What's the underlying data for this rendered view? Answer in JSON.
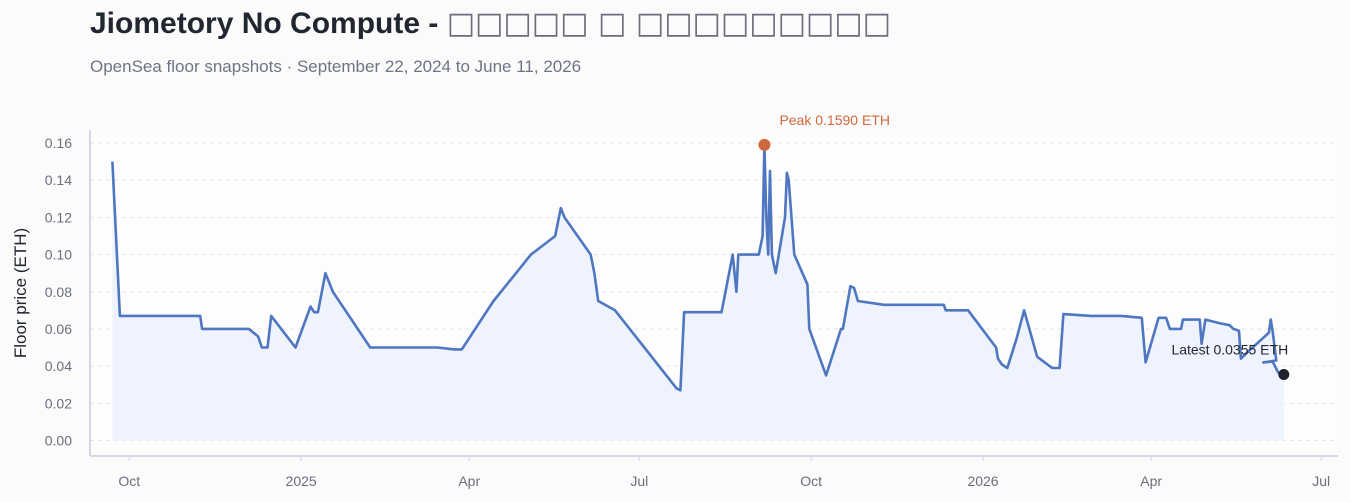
{
  "header": {
    "title": "Jiometory No Compute - ",
    "title_glyphs": "□□□□□ □ □□□□□□□□□",
    "subtitle": "OpenSea floor snapshots · September 22, 2024 to June 11, 2026"
  },
  "colors": {
    "line": "#4f76c0",
    "area": "#eef3fd",
    "peak": "#d0683e",
    "latest": "#1f222b",
    "grid": "#e2e4ea",
    "axis": "#d6d6e6"
  },
  "chart_data": {
    "type": "line",
    "xlabel": "",
    "ylabel": "Floor price (ETH)",
    "ylim": [
      0,
      0.165
    ],
    "xlim": [
      "2024-09-10",
      "2026-07-10"
    ],
    "yticks": [
      0.0,
      0.02,
      0.04,
      0.06,
      0.08,
      0.1,
      0.12,
      0.14,
      0.16
    ],
    "ytick_labels": [
      "0.00",
      "0.02",
      "0.04",
      "0.06",
      "0.08",
      "0.10",
      "0.12",
      "0.14",
      "0.16"
    ],
    "xticks": [
      {
        "date": "2024-10-01",
        "label": "Oct"
      },
      {
        "date": "2025-01-01",
        "label": "2025"
      },
      {
        "date": "2025-04-01",
        "label": "Apr"
      },
      {
        "date": "2025-07-01",
        "label": "Jul"
      },
      {
        "date": "2025-10-01",
        "label": "Oct"
      },
      {
        "date": "2026-01-01",
        "label": "2026"
      },
      {
        "date": "2026-04-01",
        "label": "Apr"
      },
      {
        "date": "2026-07-01",
        "label": "Jul"
      }
    ],
    "grid": true,
    "series": [
      {
        "points": [
          [
            "2024-09-22",
            0.15
          ],
          [
            "2024-09-26",
            0.067
          ],
          [
            "2024-11-08",
            0.067
          ],
          [
            "2024-11-09",
            0.06
          ],
          [
            "2024-12-04",
            0.06
          ],
          [
            "2024-12-09",
            0.056
          ],
          [
            "2024-12-11",
            0.05
          ],
          [
            "2024-12-14",
            0.05
          ],
          [
            "2024-12-16",
            0.067
          ],
          [
            "2024-12-29",
            0.05
          ],
          [
            "2025-01-06",
            0.072
          ],
          [
            "2025-01-08",
            0.069
          ],
          [
            "2025-01-10",
            0.069
          ],
          [
            "2025-01-14",
            0.09
          ],
          [
            "2025-01-18",
            0.08
          ],
          [
            "2025-02-07",
            0.05
          ],
          [
            "2025-03-15",
            0.05
          ],
          [
            "2025-03-24",
            0.049
          ],
          [
            "2025-03-28",
            0.049
          ],
          [
            "2025-04-14",
            0.075
          ],
          [
            "2025-05-04",
            0.1
          ],
          [
            "2025-05-17",
            0.11
          ],
          [
            "2025-05-20",
            0.125
          ],
          [
            "2025-05-22",
            0.12
          ],
          [
            "2025-06-05",
            0.1
          ],
          [
            "2025-06-07",
            0.09
          ],
          [
            "2025-06-09",
            0.075
          ],
          [
            "2025-06-18",
            0.07
          ],
          [
            "2025-07-21",
            0.028
          ],
          [
            "2025-07-23",
            0.027
          ],
          [
            "2025-07-25",
            0.069
          ],
          [
            "2025-07-29",
            0.069
          ],
          [
            "2025-08-14",
            0.069
          ],
          [
            "2025-08-20",
            0.1
          ],
          [
            "2025-08-22",
            0.08
          ],
          [
            "2025-08-23",
            0.1
          ],
          [
            "2025-09-03",
            0.1
          ],
          [
            "2025-09-05",
            0.11
          ],
          [
            "2025-09-06",
            0.159
          ],
          [
            "2025-09-07",
            0.12
          ],
          [
            "2025-09-08",
            0.1
          ],
          [
            "2025-09-09",
            0.145
          ],
          [
            "2025-09-10",
            0.1
          ],
          [
            "2025-09-12",
            0.09
          ],
          [
            "2025-09-17",
            0.12
          ],
          [
            "2025-09-18",
            0.144
          ],
          [
            "2025-09-19",
            0.14
          ],
          [
            "2025-09-22",
            0.1
          ],
          [
            "2025-09-29",
            0.084
          ],
          [
            "2025-09-30",
            0.06
          ],
          [
            "2025-10-09",
            0.035
          ],
          [
            "2025-10-17",
            0.06
          ],
          [
            "2025-10-18",
            0.06
          ],
          [
            "2025-10-22",
            0.083
          ],
          [
            "2025-10-24",
            0.082
          ],
          [
            "2025-10-26",
            0.075
          ],
          [
            "2025-11-09",
            0.073
          ],
          [
            "2025-12-11",
            0.073
          ],
          [
            "2025-12-12",
            0.07
          ],
          [
            "2025-12-24",
            0.07
          ],
          [
            "2026-01-08",
            0.05
          ],
          [
            "2026-01-09",
            0.044
          ],
          [
            "2026-01-11",
            0.041
          ],
          [
            "2026-01-14",
            0.039
          ],
          [
            "2026-01-19",
            0.055
          ],
          [
            "2026-01-23",
            0.07
          ],
          [
            "2026-01-30",
            0.045
          ],
          [
            "2026-02-07",
            0.039
          ],
          [
            "2026-02-11",
            0.039
          ],
          [
            "2026-02-13",
            0.068
          ],
          [
            "2026-02-28",
            0.067
          ],
          [
            "2026-03-16",
            0.067
          ],
          [
            "2026-03-27",
            0.066
          ],
          [
            "2026-03-29",
            0.042
          ],
          [
            "2026-04-05",
            0.066
          ],
          [
            "2026-04-09",
            0.066
          ],
          [
            "2026-04-11",
            0.06
          ],
          [
            "2026-04-17",
            0.06
          ],
          [
            "2026-04-18",
            0.065
          ],
          [
            "2026-04-27",
            0.065
          ],
          [
            "2026-04-28",
            0.052
          ],
          [
            "2026-04-30",
            0.065
          ],
          [
            "2026-05-08",
            0.063
          ],
          [
            "2026-05-13",
            0.062
          ],
          [
            "2026-05-15",
            0.06
          ],
          [
            "2026-05-18",
            0.059
          ],
          [
            "2026-05-19",
            0.044
          ],
          [
            "2026-05-22",
            0.047
          ],
          [
            "2026-06-03",
            0.058
          ],
          [
            "2026-06-04",
            0.065
          ],
          [
            "2026-06-05",
            0.059
          ],
          [
            "2026-06-07",
            0.043
          ],
          [
            "2026-05-31",
            0.042
          ],
          [
            "2026-06-05",
            0.0425
          ],
          [
            "2026-06-08",
            0.0365
          ],
          [
            "2026-06-11",
            0.0355
          ]
        ]
      }
    ],
    "annotations": [
      {
        "date": "2025-09-06",
        "value": 0.159,
        "label": "Peak 0.1590 ETH",
        "kind": "peak"
      },
      {
        "date": "2026-06-11",
        "value": 0.0355,
        "label": "Latest 0.0355 ETH",
        "kind": "latest"
      }
    ]
  }
}
